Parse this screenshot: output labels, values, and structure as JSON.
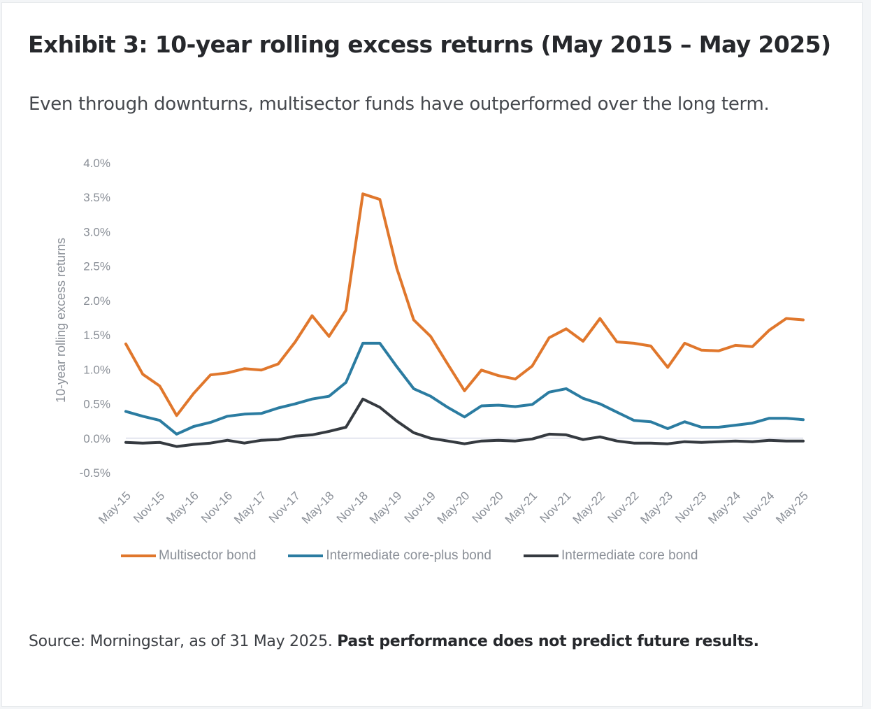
{
  "header": {
    "title": "Exhibit 3: 10-year rolling excess returns (May 2015 – May 2025)",
    "subtitle": "Even through downturns, multisector funds have outperformed over the long term."
  },
  "footer": {
    "source_text": "Source: Morningstar, as of 31 May 2025. ",
    "disclaimer": "Past performance does not predict future results."
  },
  "colors": {
    "multisector": "#e0772c",
    "core_plus": "#2b7ca1",
    "core": "#353a40",
    "axis_text": "#8a8f97",
    "zero_line": "#e3e5ee"
  },
  "chart_data": {
    "type": "line",
    "title": "",
    "ylabel": "10-year rolling excess returns",
    "xlabel": "",
    "ylim": [
      -0.5,
      4.0
    ],
    "y_ticks": [
      -0.5,
      0.0,
      0.5,
      1.0,
      1.5,
      2.0,
      2.5,
      3.0,
      3.5,
      4.0
    ],
    "y_tick_labels": [
      "-0.5%",
      "0.0%",
      "0.5%",
      "1.0%",
      "1.5%",
      "2.0%",
      "2.5%",
      "3.0%",
      "3.5%",
      "4.0%"
    ],
    "x_tick_labels": [
      "May-15",
      "Nov-15",
      "May-16",
      "Nov-16",
      "May-17",
      "Nov-17",
      "May-18",
      "Nov-18",
      "May-19",
      "Nov-19",
      "May-20",
      "Nov-20",
      "May-21",
      "Nov-21",
      "May-22",
      "Nov-22",
      "May-23",
      "Nov-23",
      "May-24",
      "Nov-24",
      "May-25"
    ],
    "x": [
      "May-15",
      "Aug-15",
      "Nov-15",
      "Feb-16",
      "May-16",
      "Aug-16",
      "Nov-16",
      "Feb-17",
      "May-17",
      "Aug-17",
      "Nov-17",
      "Feb-18",
      "May-18",
      "Aug-18",
      "Nov-18",
      "Feb-19",
      "May-19",
      "Aug-19",
      "Nov-19",
      "Feb-20",
      "May-20",
      "Aug-20",
      "Nov-20",
      "Feb-21",
      "May-21",
      "Aug-21",
      "Nov-21",
      "Feb-22",
      "May-22",
      "Aug-22",
      "Nov-22",
      "Feb-23",
      "May-23",
      "Aug-23",
      "Nov-23",
      "Feb-24",
      "May-24",
      "Aug-24",
      "Nov-24",
      "Feb-25",
      "May-25"
    ],
    "grid": false,
    "legend_position": "bottom",
    "series": [
      {
        "name": "Multisector bond",
        "color": "#e0772c",
        "values": [
          1.37,
          0.93,
          0.76,
          0.33,
          0.65,
          0.92,
          0.95,
          1.01,
          0.99,
          1.08,
          1.4,
          1.78,
          1.48,
          1.86,
          3.55,
          3.47,
          2.47,
          1.72,
          1.48,
          1.08,
          0.69,
          0.99,
          0.91,
          0.86,
          1.05,
          1.46,
          1.59,
          1.41,
          1.74,
          1.4,
          1.38,
          1.34,
          1.03,
          1.38,
          1.28,
          1.27,
          1.35,
          1.33,
          1.57,
          1.74,
          1.72
        ]
      },
      {
        "name": "Intermediate core-plus bond",
        "color": "#2b7ca1",
        "values": [
          0.39,
          0.32,
          0.26,
          0.06,
          0.17,
          0.23,
          0.32,
          0.35,
          0.36,
          0.44,
          0.5,
          0.57,
          0.61,
          0.81,
          1.38,
          1.38,
          1.04,
          0.72,
          0.61,
          0.45,
          0.31,
          0.47,
          0.48,
          0.46,
          0.49,
          0.67,
          0.72,
          0.58,
          0.5,
          0.38,
          0.26,
          0.24,
          0.14,
          0.24,
          0.16,
          0.16,
          0.19,
          0.22,
          0.29,
          0.29,
          0.27
        ]
      },
      {
        "name": "Intermediate core bond",
        "color": "#353a40",
        "values": [
          -0.06,
          -0.07,
          -0.06,
          -0.12,
          -0.09,
          -0.07,
          -0.03,
          -0.07,
          -0.03,
          -0.02,
          0.03,
          0.05,
          0.1,
          0.16,
          0.57,
          0.45,
          0.25,
          0.08,
          0.0,
          -0.04,
          -0.08,
          -0.04,
          -0.03,
          -0.04,
          -0.01,
          0.06,
          0.05,
          -0.02,
          0.02,
          -0.04,
          -0.07,
          -0.07,
          -0.08,
          -0.05,
          -0.06,
          -0.05,
          -0.04,
          -0.05,
          -0.03,
          -0.04,
          -0.04
        ]
      }
    ]
  }
}
